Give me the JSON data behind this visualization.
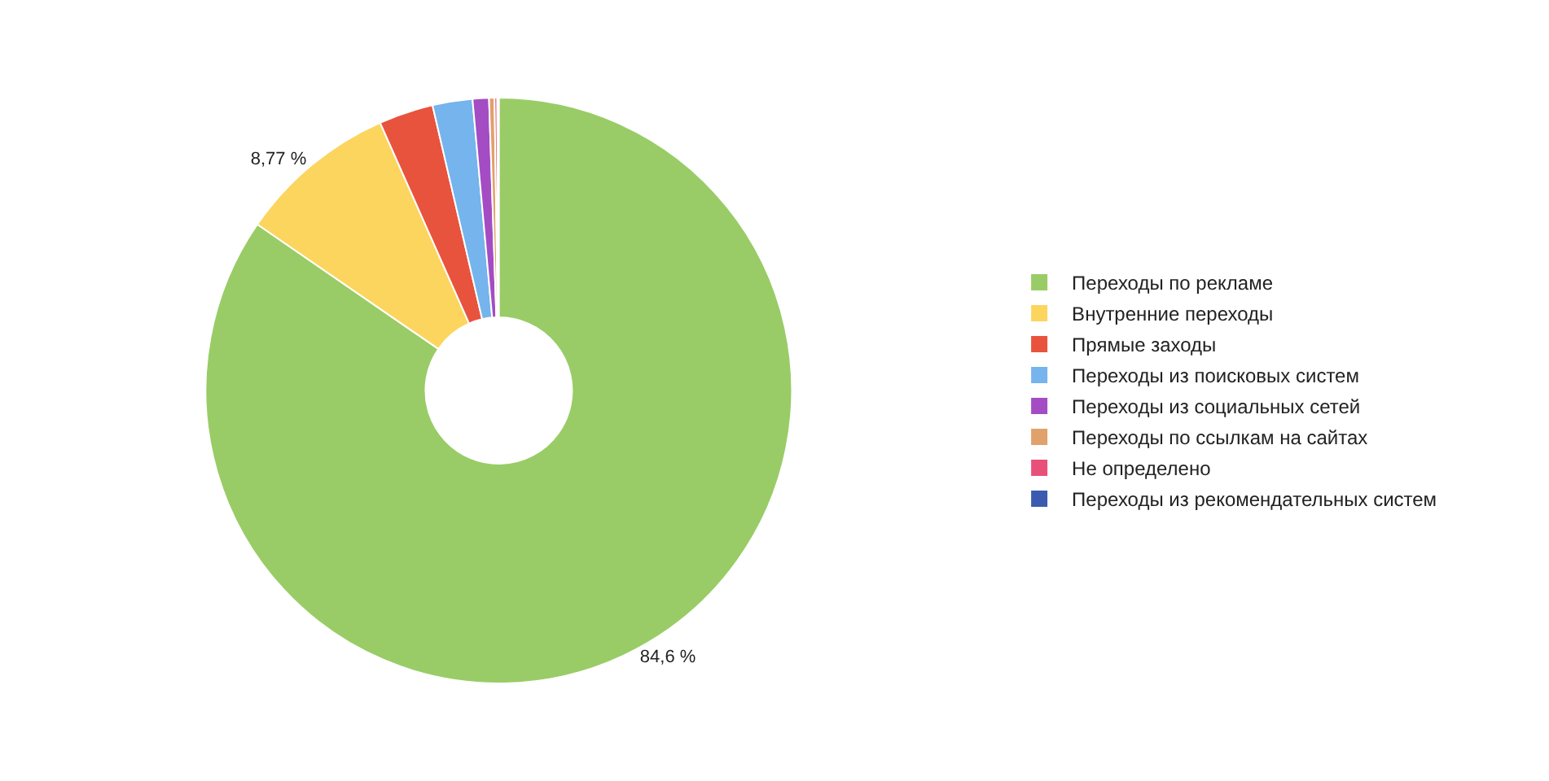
{
  "chart_data": {
    "type": "donut",
    "categories": [
      "Переходы по рекламе",
      "Внутренние переходы",
      "Прямые заходы",
      "Переходы из поисковых систем",
      "Переходы из социальных сетей",
      "Переходы по ссылкам на сайтах",
      "Не определено",
      "Переходы из рекомендательных систем"
    ],
    "values": [
      84.6,
      8.77,
      3.0,
      2.2,
      0.9,
      0.3,
      0.15,
      0.08
    ],
    "value_labels": [
      "84,6 %",
      "8,77 %",
      null,
      null,
      null,
      null,
      null,
      null
    ],
    "colors": [
      "#99cc66",
      "#fcd55f",
      "#e8533d",
      "#75b4ec",
      "#a44cc4",
      "#e0a16b",
      "#e8507a",
      "#3a5bb0"
    ],
    "legend": "right"
  }
}
